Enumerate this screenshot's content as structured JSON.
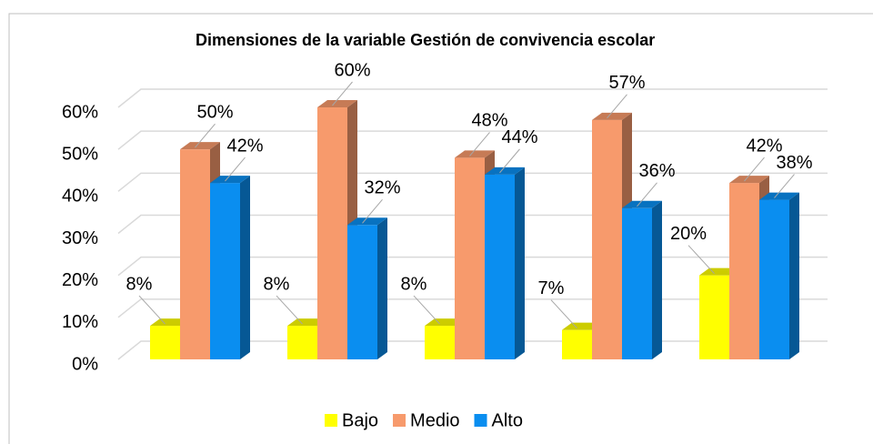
{
  "chart_data": {
    "type": "bar3d",
    "title": "Dimensiones de la variable Gestión de convivencia escolar",
    "categories": [
      null,
      null,
      null,
      null,
      null
    ],
    "series": [
      {
        "name": "Bajo",
        "color": "#ffff00",
        "values": [
          8,
          8,
          8,
          7,
          20
        ],
        "value_labels": [
          "8%",
          "8%",
          "8%",
          "7%",
          "20%"
        ]
      },
      {
        "name": "Medio",
        "color": "#f79a6c",
        "values": [
          50,
          60,
          48,
          57,
          42
        ],
        "value_labels": [
          "50%",
          "60%",
          "48%",
          "57%",
          "42%"
        ]
      },
      {
        "name": "Alto",
        "color": "#0a8ef0",
        "values": [
          42,
          32,
          44,
          36,
          38
        ],
        "value_labels": [
          "42%",
          "32%",
          "44%",
          "36%",
          "38%"
        ]
      }
    ],
    "ylim": [
      0,
      60
    ],
    "yticks": [
      {
        "value": 0,
        "label": "0%"
      },
      {
        "value": 10,
        "label": "10%"
      },
      {
        "value": 20,
        "label": "20%"
      },
      {
        "value": 30,
        "label": "30%"
      },
      {
        "value": 40,
        "label": "40%"
      },
      {
        "value": 50,
        "label": "50%"
      },
      {
        "value": 60,
        "label": "60%"
      }
    ],
    "grid": true,
    "legend": "bottom"
  }
}
